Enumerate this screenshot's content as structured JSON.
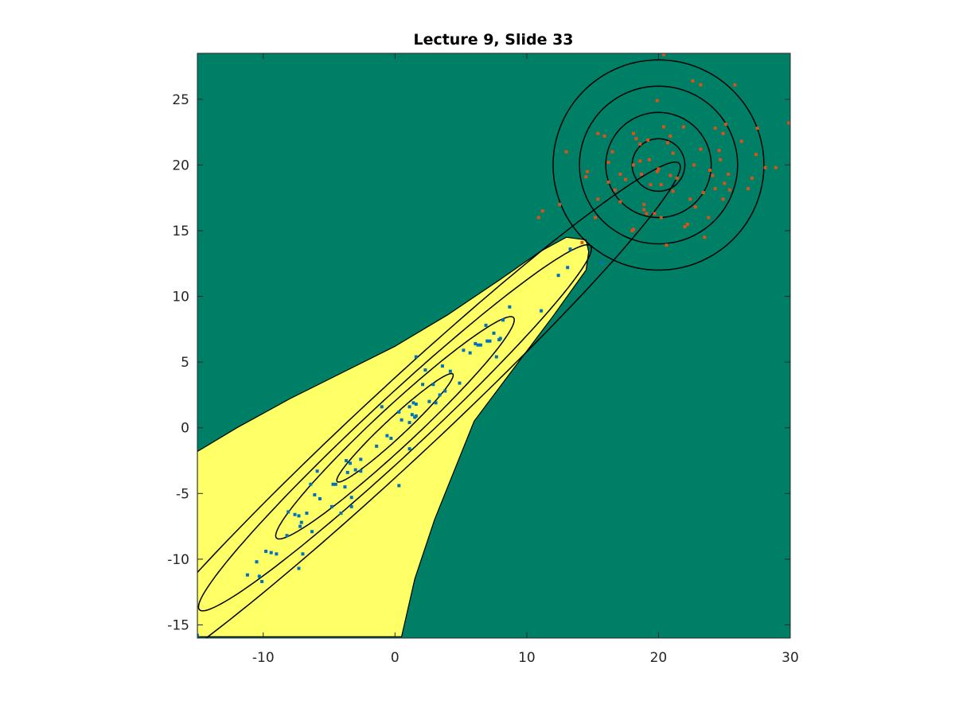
{
  "chart_data": {
    "type": "scatter",
    "title": "Lecture 9, Slide 33",
    "xlabel": "",
    "ylabel": "",
    "xlim": [
      -15,
      30
    ],
    "ylim": [
      -16,
      28.5
    ],
    "xticks": [
      -10,
      0,
      10,
      20,
      30
    ],
    "yticks": [
      -15,
      -10,
      -5,
      0,
      5,
      10,
      15,
      20,
      25
    ],
    "grid": false,
    "legend": "none",
    "colors": {
      "background_region": "#007F67",
      "decision_region": "#FFFF66",
      "boundary": "#000000",
      "contours": "#000000",
      "class1_points": "#0072BD",
      "class2_points": "#D95319",
      "axes": "#262626"
    },
    "decision_region": {
      "class": "class1",
      "boundary_points": [
        [
          -15,
          -15.9
        ],
        [
          -15,
          -1.8
        ],
        [
          -12,
          0
        ],
        [
          -8,
          2.2
        ],
        [
          -4,
          4.2
        ],
        [
          0,
          6.2
        ],
        [
          4,
          8.6
        ],
        [
          8,
          11.3
        ],
        [
          11,
          13.4
        ],
        [
          13,
          14.5
        ],
        [
          14.5,
          14.3
        ],
        [
          14.7,
          13.4
        ],
        [
          14.5,
          12
        ],
        [
          12,
          8.5
        ],
        [
          9,
          4.5
        ],
        [
          6,
          0.5
        ],
        [
          3,
          -7
        ],
        [
          1.5,
          -11.5
        ],
        [
          0.5,
          -15.9
        ]
      ]
    },
    "gaussians": [
      {
        "name": "class1",
        "mean": [
          0,
          0
        ],
        "axis_angle_deg": 43,
        "contours": [
          {
            "a": 6.0,
            "b": 0.75
          },
          {
            "a": 12.3,
            "b": 1.5
          },
          {
            "a": 20.3,
            "b": 2.1
          },
          {
            "a": 29.5,
            "b": 2.8
          }
        ]
      },
      {
        "name": "class2",
        "mean": [
          20,
          20
        ],
        "axis_angle_deg": 0,
        "contours": [
          {
            "a": 2.0,
            "b": 2.0
          },
          {
            "a": 4.0,
            "b": 4.0
          },
          {
            "a": 6.0,
            "b": 6.0
          },
          {
            "a": 8.0,
            "b": 8.0
          }
        ]
      }
    ],
    "series": [
      {
        "color": "#0072BD",
        "points": [
          [
            -15,
            -15.8
          ],
          [
            -11.2,
            -11.2
          ],
          [
            -10.1,
            -11.7
          ],
          [
            -10.3,
            -11.3
          ],
          [
            -10.5,
            -10.2
          ],
          [
            -9.8,
            -9.4
          ],
          [
            -9.4,
            -9.5
          ],
          [
            -9,
            -9.6
          ],
          [
            -7.3,
            -10.7
          ],
          [
            -7.2,
            -7.5
          ],
          [
            -7,
            -9.6
          ],
          [
            -8.2,
            -8.2
          ],
          [
            -7.6,
            -6.6
          ],
          [
            -7.3,
            -6.7
          ],
          [
            -8.1,
            -6.4
          ],
          [
            -7.1,
            -7.2
          ],
          [
            -6.7,
            -6.5
          ],
          [
            -6.3,
            -7.9
          ],
          [
            -5.7,
            -5.4
          ],
          [
            -6.1,
            -5.1
          ],
          [
            -5.9,
            -3.3
          ],
          [
            -6.4,
            -4.3
          ],
          [
            -4.7,
            -4.3
          ],
          [
            -4.5,
            -4.3
          ],
          [
            -4.8,
            -6.0
          ],
          [
            -4.1,
            -6.5
          ],
          [
            -3.8,
            -4.5
          ],
          [
            -3.6,
            -3.4
          ],
          [
            -3.3,
            -5.3
          ],
          [
            -3.3,
            -6.0
          ],
          [
            -3.4,
            -2.7
          ],
          [
            -2.6,
            -3.3
          ],
          [
            -3.0,
            -3.2
          ],
          [
            -2.6,
            -2.4
          ],
          [
            -3.7,
            -2.5
          ],
          [
            -1.4,
            -1.4
          ],
          [
            -0.6,
            -0.6
          ],
          [
            -1.0,
            1.6
          ],
          [
            -0.3,
            -0.8
          ],
          [
            0.3,
            -4.4
          ],
          [
            0.3,
            1.2
          ],
          [
            0.5,
            0.6
          ],
          [
            1.1,
            0.4
          ],
          [
            1.3,
            1.0
          ],
          [
            1.5,
            0.8
          ],
          [
            1.6,
            0.9
          ],
          [
            1.6,
            1.8
          ],
          [
            1.1,
            1.6
          ],
          [
            1.1,
            -1.6
          ],
          [
            1.4,
            1.9
          ],
          [
            1.6,
            5.4
          ],
          [
            2.1,
            3.3
          ],
          [
            2.6,
            2.0
          ],
          [
            2.9,
            3.3
          ],
          [
            2.3,
            4.4
          ],
          [
            3.1,
            1.9
          ],
          [
            3.4,
            2.5
          ],
          [
            3.8,
            2.8
          ],
          [
            3.6,
            4.7
          ],
          [
            4.2,
            4.3
          ],
          [
            4.9,
            3.4
          ],
          [
            5.2,
            5.9
          ],
          [
            5.7,
            5.7
          ],
          [
            6.1,
            6.4
          ],
          [
            6.5,
            6.3
          ],
          [
            7.0,
            6.6
          ],
          [
            6.9,
            7.8
          ],
          [
            6.3,
            6.3
          ],
          [
            7.2,
            6.6
          ],
          [
            7.7,
            5.4
          ],
          [
            7.5,
            7.2
          ],
          [
            8.0,
            6.8
          ],
          [
            7.9,
            6.7
          ],
          [
            8.2,
            8.2
          ],
          [
            8.7,
            9.2
          ],
          [
            11.1,
            8.9
          ],
          [
            12.4,
            11.6
          ],
          [
            13.1,
            12.2
          ],
          [
            13.3,
            13.6
          ],
          [
            15.7,
            12.6
          ]
        ]
      },
      {
        "color": "#D95319",
        "points": [
          [
            20.4,
            28.4
          ],
          [
            25.8,
            26.1
          ],
          [
            22.6,
            26.4
          ],
          [
            23.2,
            26.1
          ],
          [
            29.9,
            23.2
          ],
          [
            27.5,
            22.8
          ],
          [
            24.9,
            22.4
          ],
          [
            19.9,
            24.9
          ],
          [
            14.2,
            14.1
          ],
          [
            11.2,
            16.5
          ],
          [
            10.9,
            16.0
          ],
          [
            12.5,
            17.0
          ],
          [
            13.0,
            21.0
          ],
          [
            14.5,
            19.1
          ],
          [
            14.6,
            19.5
          ],
          [
            15.4,
            17.4
          ],
          [
            15.2,
            16.0
          ],
          [
            15.9,
            22.2
          ],
          [
            15.4,
            22.4
          ],
          [
            16.2,
            20.2
          ],
          [
            16.2,
            18.7
          ],
          [
            16.5,
            21.0
          ],
          [
            16.7,
            18.1
          ],
          [
            17.1,
            17.2
          ],
          [
            17.1,
            19.3
          ],
          [
            17.5,
            18.9
          ],
          [
            18.0,
            15.0
          ],
          [
            18.1,
            15.1
          ],
          [
            18.1,
            20.0
          ],
          [
            18.1,
            22.4
          ],
          [
            18.3,
            22.0
          ],
          [
            18.6,
            21.6
          ],
          [
            18.6,
            20.3
          ],
          [
            18.7,
            19.3
          ],
          [
            18.9,
            16.6
          ],
          [
            18.9,
            17.0
          ],
          [
            19.1,
            16.3
          ],
          [
            19.2,
            21.9
          ],
          [
            19.3,
            20.4
          ],
          [
            19.4,
            18.5
          ],
          [
            19.7,
            16.3
          ],
          [
            19.9,
            19.5
          ],
          [
            20.0,
            19.7
          ],
          [
            20.2,
            18.5
          ],
          [
            20.2,
            16.0
          ],
          [
            20.4,
            22.9
          ],
          [
            20.7,
            21.7
          ],
          [
            20.9,
            22.2
          ],
          [
            20.9,
            19.2
          ],
          [
            21.1,
            20.9
          ],
          [
            21.1,
            18.0
          ],
          [
            21.4,
            19.0
          ],
          [
            21.9,
            22.9
          ],
          [
            22.0,
            15.3
          ],
          [
            22.2,
            15.5
          ],
          [
            22.4,
            17.4
          ],
          [
            22.7,
            20.0
          ],
          [
            22.8,
            16.8
          ],
          [
            23.2,
            21.2
          ],
          [
            23.4,
            17.9
          ],
          [
            23.8,
            16.0
          ],
          [
            23.9,
            19.6
          ],
          [
            24.1,
            19.2
          ],
          [
            24.3,
            18.2
          ],
          [
            24.6,
            21.1
          ],
          [
            24.7,
            20.4
          ],
          [
            24.9,
            17.4
          ],
          [
            25.0,
            18.6
          ],
          [
            25.3,
            19.3
          ],
          [
            25.4,
            18.1
          ],
          [
            26.3,
            21.8
          ],
          [
            26.8,
            18.2
          ],
          [
            27.1,
            19.0
          ],
          [
            27.4,
            20.8
          ],
          [
            28.1,
            19.8
          ],
          [
            28.9,
            19.8
          ],
          [
            20.6,
            13.9
          ],
          [
            23.5,
            14.5
          ],
          [
            24.3,
            22.8
          ],
          [
            25.1,
            23.1
          ]
        ]
      }
    ]
  }
}
